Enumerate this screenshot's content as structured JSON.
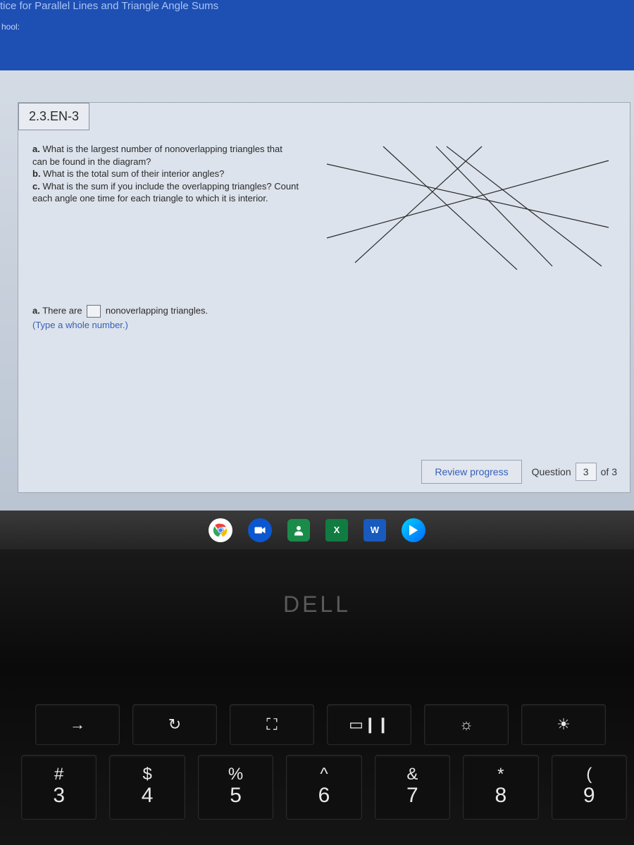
{
  "banner": {
    "title": "tice for Parallel Lines and Triangle Angle Sums",
    "sub": "hool:"
  },
  "question": {
    "id": "2.3.EN-3",
    "parts": {
      "a": "What is the largest number of nonoverlapping triangles that can be found in the diagram?",
      "b": "What is the total sum of their interior angles?",
      "c": "What is the sum if you include the overlapping triangles? Count each angle one time for each triangle to which it is interior."
    },
    "answer": {
      "label_a": "a.",
      "prefix": "There are",
      "suffix": "nonoverlapping triangles.",
      "hint": "(Type a whole number.)"
    }
  },
  "diagram": {
    "stroke": "#2a2a2a",
    "stroke_width": 1.2,
    "lines": [
      [
        10,
        30,
        410,
        120
      ],
      [
        10,
        135,
        410,
        25
      ],
      [
        50,
        170,
        230,
        5
      ],
      [
        180,
        5,
        400,
        175
      ],
      [
        90,
        5,
        280,
        180
      ],
      [
        330,
        175,
        165,
        5
      ]
    ]
  },
  "footer": {
    "review": "Review progress",
    "question_label": "Question",
    "current": "3",
    "of_label": "of 3"
  },
  "taskbar": {
    "excel_letter": "X",
    "word_letter": "W"
  },
  "laptop": {
    "brand": "DELL"
  },
  "keys": {
    "fn": [
      {
        "glyph": "→"
      },
      {
        "glyph": "↻"
      },
      {
        "glyph": "⛶"
      },
      {
        "glyph": "▭❙❙"
      },
      {
        "glyph": "☼"
      },
      {
        "glyph": "☀"
      }
    ],
    "num": [
      {
        "upper": "#",
        "lower": "3"
      },
      {
        "upper": "$",
        "lower": "4"
      },
      {
        "upper": "%",
        "lower": "5"
      },
      {
        "upper": "^",
        "lower": "6"
      },
      {
        "upper": "&",
        "lower": "7"
      },
      {
        "upper": "*",
        "lower": "8"
      },
      {
        "upper": "(",
        "lower": "9"
      }
    ]
  }
}
